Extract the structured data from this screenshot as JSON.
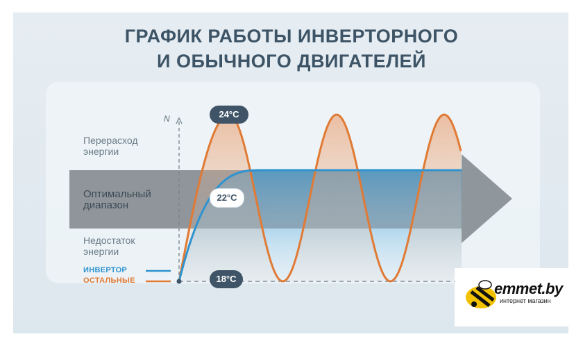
{
  "title": {
    "line1": "ГРАФИК РАБОТЫ ИНВЕРТОРНОГО",
    "line2": "И ОБЫЧНОГО ДВИГАТЕЛЕЙ"
  },
  "chart_data": {
    "type": "line",
    "ylabel": "N",
    "zones": [
      {
        "label_line1": "Перерасход",
        "label_line2": "энергии"
      },
      {
        "label_line1": "Оптимальный",
        "label_line2": "диапазон"
      },
      {
        "label_line1": "Недостаток",
        "label_line2": "энергии"
      }
    ],
    "series": [
      {
        "name": "ИНВЕРТОР",
        "color": "#2f93cf",
        "peak_label": "22°C",
        "target": 22
      },
      {
        "name": "ОСТАЛЬНЫЕ",
        "color": "#e07a34",
        "peak_label": "24°C",
        "max": 24,
        "min": 18,
        "cycles": 3
      }
    ],
    "baseline_label": "18°C",
    "baseline": 18,
    "colors": {
      "band": "#8b9299",
      "axis": "#6a7b87"
    }
  },
  "logo": {
    "name": "emmet.by",
    "tagline": "интернет магазин",
    "icon": "bee-icon"
  }
}
